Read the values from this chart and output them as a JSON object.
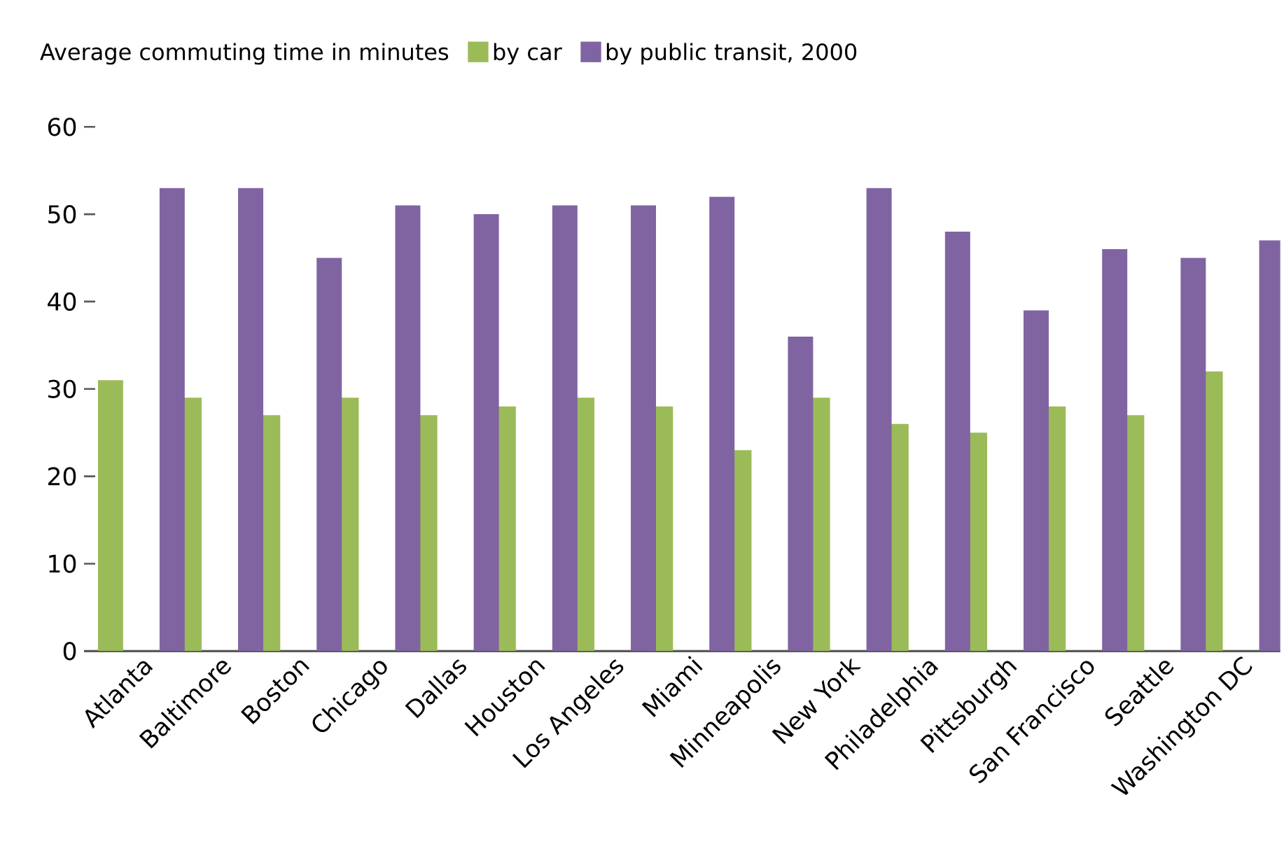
{
  "chart_data": {
    "type": "bar",
    "legend_title": "Average commuting time in minutes",
    "categories": [
      "Atlanta",
      "Baltimore",
      "Boston",
      "Chicago",
      "Dallas",
      "Houston",
      "Los Angeles",
      "Miami",
      "Minneapolis",
      "New York",
      "Philadelphia",
      "Pittsburgh",
      "San Francisco",
      "Seattle",
      "Washington DC"
    ],
    "series": [
      {
        "name": "by car",
        "color": "#9bbb59",
        "values": [
          31,
          29,
          27,
          29,
          27,
          28,
          29,
          28,
          23,
          29,
          26,
          25,
          28,
          27,
          32
        ]
      },
      {
        "name": "by public transit, 2000",
        "color": "#8064a2",
        "values": [
          53,
          53,
          45,
          51,
          50,
          51,
          51,
          52,
          36,
          53,
          48,
          39,
          46,
          45,
          47
        ]
      }
    ],
    "ylim": [
      0,
      60
    ],
    "yticks": [
      0,
      10,
      20,
      30,
      40,
      50,
      60
    ],
    "legend": "top"
  }
}
